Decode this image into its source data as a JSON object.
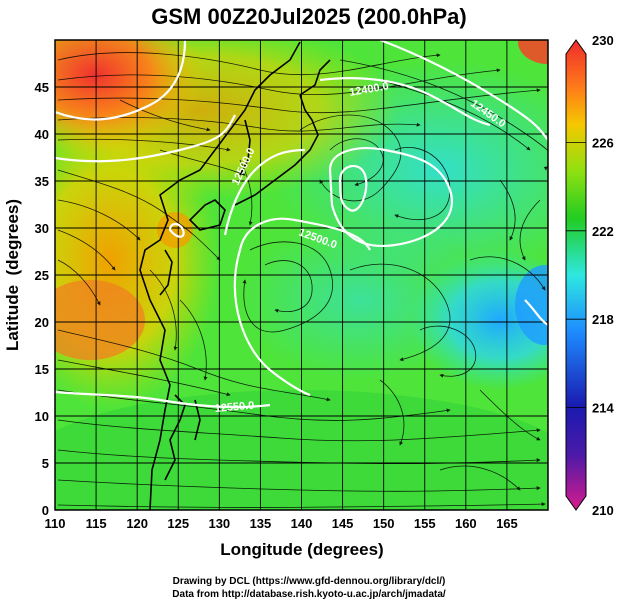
{
  "chart_data": {
    "type": "heatmap",
    "title": "GSM 00Z20Jul2025 (200.0hPa)",
    "xlabel": "Longitude (degrees)",
    "ylabel": "Latitude  (degrees)",
    "xlim": [
      110,
      170
    ],
    "ylim": [
      0,
      50
    ],
    "xticks": [
      110,
      115,
      120,
      125,
      130,
      135,
      140,
      145,
      150,
      155,
      160,
      165
    ],
    "yticks": [
      0,
      5,
      10,
      15,
      20,
      25,
      30,
      35,
      40,
      45
    ],
    "grid": true,
    "colorbar": {
      "min": 210,
      "max": 230,
      "ticks": [
        210,
        214,
        218,
        222,
        226,
        230
      ],
      "colors": [
        "#d81b8c",
        "#1a1aa0",
        "#1e8cff",
        "#2ee8e0",
        "#22cc22",
        "#8ee010",
        "#f5c800",
        "#ff7a1a",
        "#ee2b2b"
      ]
    },
    "contours": [
      {
        "label": "12400.0",
        "note": "upper east"
      },
      {
        "label": "12450.0",
        "note": "north-east"
      },
      {
        "label": "12500.0",
        "note": "central"
      },
      {
        "label": "12500.0",
        "note": "coast of Japan"
      },
      {
        "label": "12550.0",
        "note": "southern"
      }
    ],
    "credits": [
      "Drawing by DCL (https://www.gfd-dennou.org/library/dcl/)",
      "Data from http://database.rish.kyoto-u.ac.jp/arch/jmadata/"
    ]
  }
}
